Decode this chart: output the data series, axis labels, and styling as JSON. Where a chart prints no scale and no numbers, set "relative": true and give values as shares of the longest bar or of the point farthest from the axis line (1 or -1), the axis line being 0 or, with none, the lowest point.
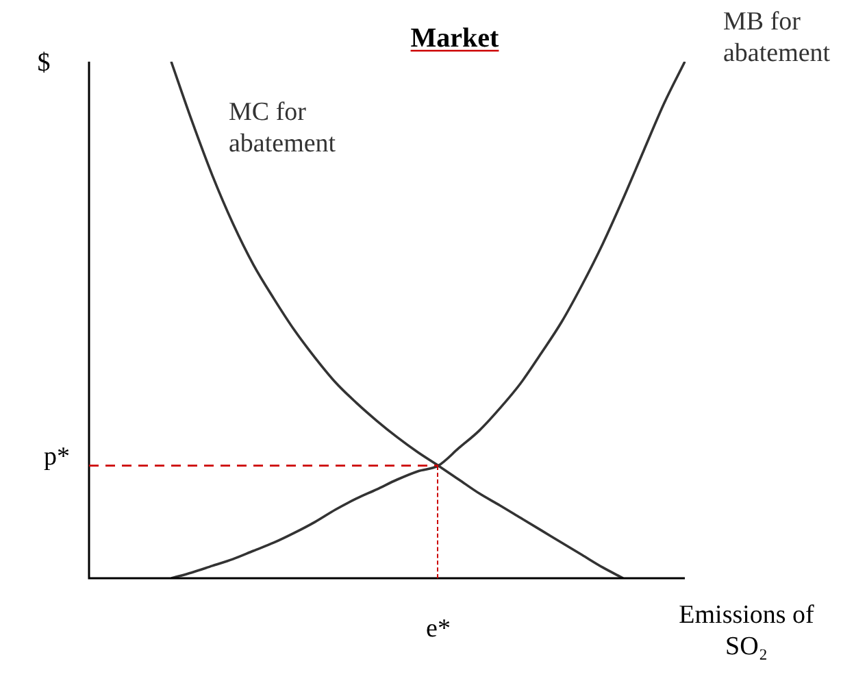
{
  "chart_data": {
    "type": "line",
    "title": "Market",
    "ylabel": "$",
    "xlabel": "Emissions of SO₂",
    "relative": true,
    "categories": [
      null,
      null,
      null,
      null,
      null,
      null,
      null,
      null,
      null,
      null,
      null,
      null,
      null,
      null,
      null,
      null,
      null,
      null,
      null,
      null,
      null,
      null,
      null,
      null,
      null,
      null,
      null,
      null,
      null,
      null
    ],
    "series": [
      {
        "name": "MC for abatement",
        "color": "#333333",
        "values": [
          null,
          null,
          null,
          null,
          1.0,
          0.886,
          0.78,
          0.687,
          0.607,
          0.541,
          0.48,
          0.427,
          0.379,
          0.34,
          0.305,
          0.273,
          0.244,
          0.218,
          0.191,
          0.164,
          0.141,
          0.117,
          0.093,
          0.069,
          0.045,
          0.021,
          0,
          null,
          null,
          null
        ]
      },
      {
        "name": "MB for abatement",
        "color": "#333333",
        "values": [
          null,
          null,
          null,
          null,
          0,
          0.011,
          0.024,
          0.037,
          0.053,
          0.069,
          0.088,
          0.109,
          0.133,
          0.154,
          0.172,
          0.191,
          0.207,
          0.218,
          0.252,
          0.286,
          0.329,
          0.377,
          0.435,
          0.496,
          0.568,
          0.647,
          0.735,
          0.828,
          0.92,
          1.0
        ]
      }
    ],
    "ref_lines": [
      {
        "axis": "y",
        "value": 0.218,
        "label": "p*",
        "color": "#cc0000",
        "line_style": "dashed"
      }
    ],
    "annotations": [
      "e*"
    ],
    "legend": false,
    "marker": "none",
    "line_style": "solid"
  }
}
